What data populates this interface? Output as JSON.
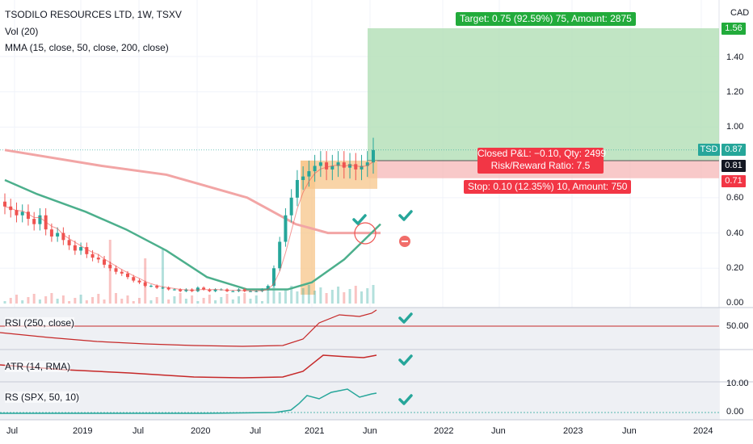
{
  "header": {
    "title": "TSODILO RESOURCES LTD, 1W, TSXV",
    "indicators": [
      "Vol (20)",
      "MMA (15, close, 50, close, 200, close)"
    ]
  },
  "currency": "CAD",
  "price_axis": {
    "ticks": [
      "1.40",
      "1.20",
      "1.00",
      "0.60",
      "0.40",
      "0.20",
      "0.00"
    ],
    "target_tag": "1.56",
    "last_tag": "0.87",
    "entry_tag": "0.81",
    "stop_tag": "0.71",
    "symbol": "TSD"
  },
  "time_axis": [
    "Jul",
    "2019",
    "Jul",
    "2020",
    "Jul",
    "2021",
    "Jun",
    "2022",
    "Jun",
    "2023",
    "Jun",
    "2024"
  ],
  "position": {
    "target_text": "Target: 0.75 (92.59%) 75, Amount: 2875",
    "closed_pnl": "Closed P&L: −0.10, Qty: 2499",
    "risk_reward": "Risk/Reward Ratio: 7.5",
    "stop_text": "Stop: 0.10 (12.35%) 10, Amount: 750"
  },
  "panes": {
    "rsi": {
      "label": "RSI (250, close)",
      "tick": "50.00"
    },
    "atr": {
      "label": "ATR (14, RMA)"
    },
    "rs": {
      "label": "RS (SPX, 50, 10)",
      "ticks": [
        "10.00",
        "0.00"
      ]
    }
  },
  "colors": {
    "up": "#26a69a",
    "down": "#ef5350",
    "ma15": "#ef5350",
    "ma50": "#4caf8c",
    "ma200": "#f2a5a5",
    "target_zone": "#b2dfb5",
    "stop_zone": "#f6bcbc",
    "consolidation_box": "#f7c58a",
    "check": "#26a69a",
    "rsi_line": "#c62828"
  },
  "icons": [
    "check-icon",
    "minus-circle-icon"
  ],
  "chart_data": {
    "type": "candlestick",
    "symbol": "TSD",
    "exchange": "TSXV",
    "interval": "1W",
    "ylim": [
      0,
      1.56
    ],
    "last_price": 0.87,
    "entry_price": 0.81,
    "target_price": 1.56,
    "stop_price": 0.71,
    "grid": true,
    "series": [
      {
        "name": "MMA (200)",
        "points": [
          [
            0,
            0.87
          ],
          [
            120,
            0.78
          ],
          [
            200,
            0.73
          ],
          [
            300,
            0.6
          ],
          [
            360,
            0.45
          ],
          [
            400,
            0.4
          ],
          [
            465,
            0.4
          ]
        ]
      },
      {
        "name": "MMA (50)",
        "points": [
          [
            0,
            0.7
          ],
          [
            40,
            0.62
          ],
          [
            100,
            0.52
          ],
          [
            150,
            0.42
          ],
          [
            200,
            0.3
          ],
          [
            250,
            0.15
          ],
          [
            300,
            0.08
          ],
          [
            350,
            0.08
          ],
          [
            380,
            0.12
          ],
          [
            420,
            0.25
          ],
          [
            465,
            0.45
          ]
        ]
      }
    ],
    "candles_close": [
      0.55,
      0.53,
      0.5,
      0.52,
      0.48,
      0.45,
      0.5,
      0.42,
      0.38,
      0.4,
      0.36,
      0.33,
      0.3,
      0.32,
      0.28,
      0.26,
      0.25,
      0.22,
      0.2,
      0.18,
      0.17,
      0.15,
      0.13,
      0.12,
      0.1,
      0.1,
      0.09,
      0.09,
      0.08,
      0.08,
      0.07,
      0.08,
      0.07,
      0.09,
      0.08,
      0.07,
      0.08,
      0.08,
      0.07,
      0.07,
      0.08,
      0.07,
      0.07,
      0.07,
      0.08,
      0.1,
      0.2,
      0.35,
      0.5,
      0.6,
      0.7,
      0.72,
      0.75,
      0.78,
      0.8,
      0.76,
      0.78,
      0.8,
      0.77,
      0.79,
      0.76,
      0.78,
      0.8,
      0.87
    ]
  }
}
